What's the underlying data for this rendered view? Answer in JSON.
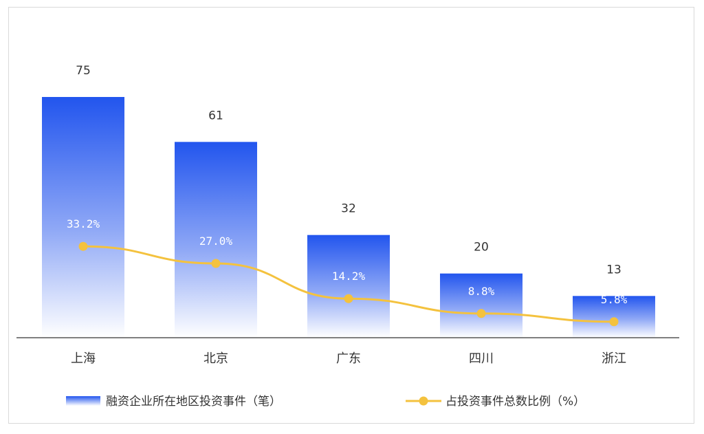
{
  "chart_data": {
    "type": "bar",
    "categories": [
      "上海",
      "北京",
      "广东",
      "四川",
      "浙江"
    ],
    "series": [
      {
        "name": "融资企业所在地区投资事件（笔）",
        "type": "bar",
        "values": [
          75,
          61,
          32,
          20,
          13
        ]
      },
      {
        "name": "占投资事件总数比例（%）",
        "type": "line",
        "values": [
          33.2,
          27.0,
          14.2,
          8.8,
          5.8
        ],
        "labels": [
          "33.2%",
          "27.0%",
          "14.2%",
          "8.8%",
          "5.8%"
        ]
      }
    ],
    "colors": {
      "bar_top": "#2255ee",
      "bar_bottom": "#ffffff",
      "line": "#f4c23e",
      "axis": "#555555"
    },
    "legend_position": "bottom",
    "grid": false
  }
}
